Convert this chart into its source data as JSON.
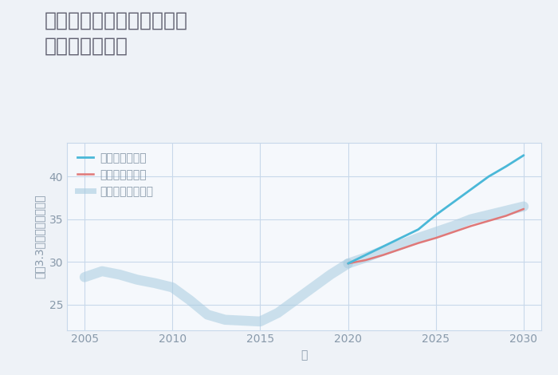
{
  "title": "兵庫県三木市吉川町畑枝の\n土地の価格推移",
  "xlabel": "年",
  "ylabel": "坪（3.3㎡）単価（万円）",
  "bg_color": "#eef2f7",
  "plot_bg_color": "#f5f8fc",
  "grid_color": "#c8d8ea",
  "title_color": "#606070",
  "axis_color": "#8899aa",
  "legend_labels": [
    "グッドシナリオ",
    "バッドシナリオ",
    "ノーマルシナリオ"
  ],
  "line_colors_good": "#4ab8d8",
  "line_colors_bad": "#e07878",
  "line_colors_normal": "#a8cce0",
  "ylim": [
    22,
    44
  ],
  "xlim": [
    2004,
    2031
  ],
  "yticks": [
    25,
    30,
    35,
    40
  ],
  "xticks": [
    2005,
    2010,
    2015,
    2020,
    2025,
    2030
  ],
  "historical_years": [
    2005,
    2006,
    2007,
    2008,
    2009,
    2010,
    2011,
    2012,
    2013,
    2014,
    2015,
    2016,
    2017,
    2018,
    2019,
    2020
  ],
  "historical_values": [
    28.2,
    28.9,
    28.5,
    27.9,
    27.5,
    27.0,
    25.5,
    23.8,
    23.2,
    23.1,
    23.0,
    24.0,
    25.5,
    27.0,
    28.5,
    29.8
  ],
  "good_years": [
    2020,
    2021,
    2022,
    2023,
    2024,
    2025,
    2026,
    2027,
    2028,
    2029,
    2030
  ],
  "good_values": [
    29.8,
    30.8,
    31.8,
    32.8,
    33.8,
    35.5,
    37.0,
    38.5,
    40.0,
    41.2,
    42.5
  ],
  "bad_years": [
    2020,
    2021,
    2022,
    2023,
    2024,
    2025,
    2026,
    2027,
    2028,
    2029,
    2030
  ],
  "bad_values": [
    29.8,
    30.2,
    30.8,
    31.5,
    32.2,
    32.8,
    33.5,
    34.2,
    34.8,
    35.4,
    36.2
  ],
  "normal_years": [
    2020,
    2021,
    2022,
    2023,
    2024,
    2025,
    2026,
    2027,
    2028,
    2029,
    2030
  ],
  "normal_values": [
    29.8,
    30.5,
    31.3,
    32.0,
    32.8,
    33.5,
    34.2,
    35.0,
    35.5,
    36.0,
    36.5
  ],
  "title_fontsize": 18,
  "label_fontsize": 10,
  "tick_fontsize": 10,
  "legend_fontsize": 10
}
